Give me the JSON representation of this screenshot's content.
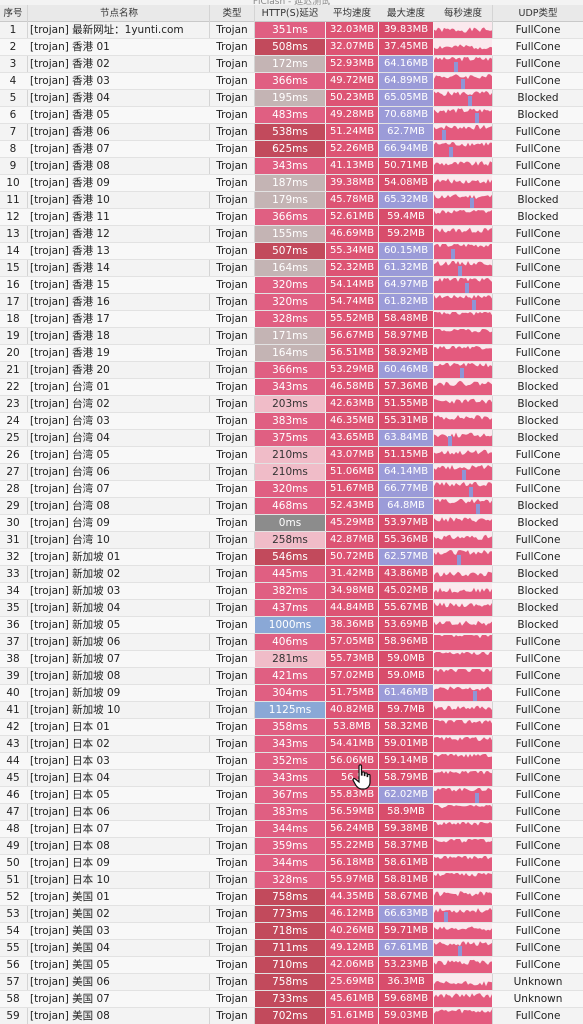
{
  "window_title": "FlClash - 延迟测试",
  "columns": {
    "idx": "序号",
    "name": "节点名称",
    "type": "类型",
    "http": "HTTP(S)延迟",
    "avg": "平均速度",
    "max": "最大速度",
    "per_sec": "每秒速度",
    "udp": "UDP类型"
  },
  "colors": {
    "http_fast": "#c4b4b4",
    "http_mid": "#e05f82",
    "http_slow": "#c24a5c",
    "http_light": "#f0bcc8",
    "http_zero": "#8c8c8c",
    "http_very_slow": "#8aa8d6",
    "avg_bg": "#dd5474",
    "max_bg": "#d84d6c",
    "max_high": "#9b9bd8",
    "spark_fill": "#e45a7e",
    "spark_dip": "#8e95d6"
  },
  "rows": [
    {
      "idx": "1",
      "name": "[trojan] 最新网址：1yunti.com",
      "type": "Trojan",
      "http": "351ms",
      "avg": "32.03MB",
      "max": "39.83MB",
      "udp": "FullCone"
    },
    {
      "idx": "2",
      "name": "[trojan] 香港 01",
      "type": "Trojan",
      "http": "508ms",
      "avg": "32.07MB",
      "max": "37.45MB",
      "udp": "FullCone"
    },
    {
      "idx": "3",
      "name": "[trojan] 香港 02",
      "type": "Trojan",
      "http": "172ms",
      "avg": "52.93MB",
      "max": "64.16MB",
      "udp": "FullCone"
    },
    {
      "idx": "4",
      "name": "[trojan] 香港 03",
      "type": "Trojan",
      "http": "366ms",
      "avg": "49.72MB",
      "max": "64.89MB",
      "udp": "FullCone"
    },
    {
      "idx": "5",
      "name": "[trojan] 香港 04",
      "type": "Trojan",
      "http": "195ms",
      "avg": "50.23MB",
      "max": "65.05MB",
      "udp": "Blocked"
    },
    {
      "idx": "6",
      "name": "[trojan] 香港 05",
      "type": "Trojan",
      "http": "483ms",
      "avg": "49.28MB",
      "max": "70.68MB",
      "udp": "Blocked"
    },
    {
      "idx": "7",
      "name": "[trojan] 香港 06",
      "type": "Trojan",
      "http": "538ms",
      "avg": "51.24MB",
      "max": "62.7MB",
      "udp": "FullCone"
    },
    {
      "idx": "8",
      "name": "[trojan] 香港 07",
      "type": "Trojan",
      "http": "625ms",
      "avg": "52.26MB",
      "max": "66.94MB",
      "udp": "FullCone"
    },
    {
      "idx": "9",
      "name": "[trojan] 香港 08",
      "type": "Trojan",
      "http": "343ms",
      "avg": "41.13MB",
      "max": "50.71MB",
      "udp": "FullCone"
    },
    {
      "idx": "10",
      "name": "[trojan] 香港 09",
      "type": "Trojan",
      "http": "187ms",
      "avg": "39.38MB",
      "max": "54.08MB",
      "udp": "FullCone"
    },
    {
      "idx": "11",
      "name": "[trojan] 香港 10",
      "type": "Trojan",
      "http": "179ms",
      "avg": "45.78MB",
      "max": "65.32MB",
      "udp": "Blocked"
    },
    {
      "idx": "12",
      "name": "[trojan] 香港 11",
      "type": "Trojan",
      "http": "366ms",
      "avg": "52.61MB",
      "max": "59.4MB",
      "udp": "Blocked"
    },
    {
      "idx": "13",
      "name": "[trojan] 香港 12",
      "type": "Trojan",
      "http": "155ms",
      "avg": "46.69MB",
      "max": "59.2MB",
      "udp": "FullCone"
    },
    {
      "idx": "14",
      "name": "[trojan] 香港 13",
      "type": "Trojan",
      "http": "507ms",
      "avg": "55.34MB",
      "max": "60.15MB",
      "udp": "FullCone"
    },
    {
      "idx": "15",
      "name": "[trojan] 香港 14",
      "type": "Trojan",
      "http": "164ms",
      "avg": "52.32MB",
      "max": "61.32MB",
      "udp": "FullCone"
    },
    {
      "idx": "16",
      "name": "[trojan] 香港 15",
      "type": "Trojan",
      "http": "320ms",
      "avg": "54.14MB",
      "max": "64.97MB",
      "udp": "FullCone"
    },
    {
      "idx": "17",
      "name": "[trojan] 香港 16",
      "type": "Trojan",
      "http": "320ms",
      "avg": "54.74MB",
      "max": "61.82MB",
      "udp": "FullCone"
    },
    {
      "idx": "18",
      "name": "[trojan] 香港 17",
      "type": "Trojan",
      "http": "328ms",
      "avg": "55.52MB",
      "max": "58.48MB",
      "udp": "FullCone"
    },
    {
      "idx": "19",
      "name": "[trojan] 香港 18",
      "type": "Trojan",
      "http": "171ms",
      "avg": "56.67MB",
      "max": "58.97MB",
      "udp": "FullCone"
    },
    {
      "idx": "20",
      "name": "[trojan] 香港 19",
      "type": "Trojan",
      "http": "164ms",
      "avg": "56.51MB",
      "max": "58.92MB",
      "udp": "FullCone"
    },
    {
      "idx": "21",
      "name": "[trojan] 香港 20",
      "type": "Trojan",
      "http": "366ms",
      "avg": "53.29MB",
      "max": "60.46MB",
      "udp": "Blocked"
    },
    {
      "idx": "22",
      "name": "[trojan] 台湾 01",
      "type": "Trojan",
      "http": "343ms",
      "avg": "46.58MB",
      "max": "57.36MB",
      "udp": "Blocked"
    },
    {
      "idx": "23",
      "name": "[trojan] 台湾 02",
      "type": "Trojan",
      "http": "203ms",
      "avg": "42.63MB",
      "max": "51.55MB",
      "udp": "Blocked"
    },
    {
      "idx": "24",
      "name": "[trojan] 台湾 03",
      "type": "Trojan",
      "http": "383ms",
      "avg": "46.35MB",
      "max": "55.31MB",
      "udp": "Blocked"
    },
    {
      "idx": "25",
      "name": "[trojan] 台湾 04",
      "type": "Trojan",
      "http": "375ms",
      "avg": "43.65MB",
      "max": "63.84MB",
      "udp": "Blocked"
    },
    {
      "idx": "26",
      "name": "[trojan] 台湾 05",
      "type": "Trojan",
      "http": "210ms",
      "avg": "43.07MB",
      "max": "51.15MB",
      "udp": "FullCone"
    },
    {
      "idx": "27",
      "name": "[trojan] 台湾 06",
      "type": "Trojan",
      "http": "210ms",
      "avg": "51.06MB",
      "max": "64.14MB",
      "udp": "FullCone"
    },
    {
      "idx": "28",
      "name": "[trojan] 台湾 07",
      "type": "Trojan",
      "http": "320ms",
      "avg": "51.67MB",
      "max": "66.77MB",
      "udp": "FullCone"
    },
    {
      "idx": "29",
      "name": "[trojan] 台湾 08",
      "type": "Trojan",
      "http": "468ms",
      "avg": "52.43MB",
      "max": "64.8MB",
      "udp": "Blocked"
    },
    {
      "idx": "30",
      "name": "[trojan] 台湾 09",
      "type": "Trojan",
      "http": "0ms",
      "avg": "45.29MB",
      "max": "53.97MB",
      "udp": "Blocked"
    },
    {
      "idx": "31",
      "name": "[trojan] 台湾 10",
      "type": "Trojan",
      "http": "258ms",
      "avg": "42.87MB",
      "max": "55.36MB",
      "udp": "FullCone"
    },
    {
      "idx": "32",
      "name": "[trojan] 新加坡 01",
      "type": "Trojan",
      "http": "546ms",
      "avg": "50.72MB",
      "max": "62.57MB",
      "udp": "FullCone"
    },
    {
      "idx": "33",
      "name": "[trojan] 新加坡 02",
      "type": "Trojan",
      "http": "445ms",
      "avg": "31.42MB",
      "max": "43.86MB",
      "udp": "Blocked"
    },
    {
      "idx": "34",
      "name": "[trojan] 新加坡 03",
      "type": "Trojan",
      "http": "382ms",
      "avg": "34.98MB",
      "max": "45.02MB",
      "udp": "Blocked"
    },
    {
      "idx": "35",
      "name": "[trojan] 新加坡 04",
      "type": "Trojan",
      "http": "437ms",
      "avg": "44.84MB",
      "max": "55.67MB",
      "udp": "Blocked"
    },
    {
      "idx": "36",
      "name": "[trojan] 新加坡 05",
      "type": "Trojan",
      "http": "1000ms",
      "avg": "38.36MB",
      "max": "53.69MB",
      "udp": "Blocked"
    },
    {
      "idx": "37",
      "name": "[trojan] 新加坡 06",
      "type": "Trojan",
      "http": "406ms",
      "avg": "57.05MB",
      "max": "58.96MB",
      "udp": "FullCone"
    },
    {
      "idx": "38",
      "name": "[trojan] 新加坡 07",
      "type": "Trojan",
      "http": "281ms",
      "avg": "55.73MB",
      "max": "59.0MB",
      "udp": "FullCone"
    },
    {
      "idx": "39",
      "name": "[trojan] 新加坡 08",
      "type": "Trojan",
      "http": "421ms",
      "avg": "57.02MB",
      "max": "59.0MB",
      "udp": "FullCone"
    },
    {
      "idx": "40",
      "name": "[trojan] 新加坡 09",
      "type": "Trojan",
      "http": "304ms",
      "avg": "51.75MB",
      "max": "61.46MB",
      "udp": "FullCone"
    },
    {
      "idx": "41",
      "name": "[trojan] 新加坡 10",
      "type": "Trojan",
      "http": "1125ms",
      "avg": "40.82MB",
      "max": "59.7MB",
      "udp": "FullCone"
    },
    {
      "idx": "42",
      "name": "[trojan] 日本 01",
      "type": "Trojan",
      "http": "358ms",
      "avg": "53.8MB",
      "max": "58.32MB",
      "udp": "FullCone"
    },
    {
      "idx": "43",
      "name": "[trojan] 日本 02",
      "type": "Trojan",
      "http": "343ms",
      "avg": "54.41MB",
      "max": "59.01MB",
      "udp": "FullCone"
    },
    {
      "idx": "44",
      "name": "[trojan] 日本 03",
      "type": "Trojan",
      "http": "352ms",
      "avg": "56.06MB",
      "max": "59.14MB",
      "udp": "FullCone"
    },
    {
      "idx": "45",
      "name": "[trojan] 日本 04",
      "type": "Trojan",
      "http": "343ms",
      "avg": "56.5",
      "max": "58.79MB",
      "udp": "FullCone"
    },
    {
      "idx": "46",
      "name": "[trojan] 日本 05",
      "type": "Trojan",
      "http": "367ms",
      "avg": "55.83MB",
      "max": "62.02MB",
      "udp": "FullCone"
    },
    {
      "idx": "47",
      "name": "[trojan] 日本 06",
      "type": "Trojan",
      "http": "383ms",
      "avg": "56.59MB",
      "max": "58.9MB",
      "udp": "FullCone"
    },
    {
      "idx": "48",
      "name": "[trojan] 日本 07",
      "type": "Trojan",
      "http": "344ms",
      "avg": "56.24MB",
      "max": "59.38MB",
      "udp": "FullCone"
    },
    {
      "idx": "49",
      "name": "[trojan] 日本 08",
      "type": "Trojan",
      "http": "359ms",
      "avg": "55.22MB",
      "max": "58.37MB",
      "udp": "FullCone"
    },
    {
      "idx": "50",
      "name": "[trojan] 日本 09",
      "type": "Trojan",
      "http": "344ms",
      "avg": "56.18MB",
      "max": "58.61MB",
      "udp": "FullCone"
    },
    {
      "idx": "51",
      "name": "[trojan] 日本 10",
      "type": "Trojan",
      "http": "328ms",
      "avg": "55.97MB",
      "max": "58.81MB",
      "udp": "FullCone"
    },
    {
      "idx": "52",
      "name": "[trojan] 美国 01",
      "type": "Trojan",
      "http": "758ms",
      "avg": "44.35MB",
      "max": "58.67MB",
      "udp": "FullCone"
    },
    {
      "idx": "53",
      "name": "[trojan] 美国 02",
      "type": "Trojan",
      "http": "773ms",
      "avg": "46.12MB",
      "max": "66.63MB",
      "udp": "FullCone"
    },
    {
      "idx": "54",
      "name": "[trojan] 美国 03",
      "type": "Trojan",
      "http": "718ms",
      "avg": "40.26MB",
      "max": "59.71MB",
      "udp": "FullCone"
    },
    {
      "idx": "55",
      "name": "[trojan] 美国 04",
      "type": "Trojan",
      "http": "711ms",
      "avg": "49.12MB",
      "max": "67.61MB",
      "udp": "FullCone"
    },
    {
      "idx": "56",
      "name": "[trojan] 美国 05",
      "type": "Trojan",
      "http": "710ms",
      "avg": "42.06MB",
      "max": "53.23MB",
      "udp": "FullCone"
    },
    {
      "idx": "57",
      "name": "[trojan] 美国 06",
      "type": "Trojan",
      "http": "758ms",
      "avg": "25.69MB",
      "max": "36.3MB",
      "udp": "Unknown"
    },
    {
      "idx": "58",
      "name": "[trojan] 美国 07",
      "type": "Trojan",
      "http": "733ms",
      "avg": "45.61MB",
      "max": "59.68MB",
      "udp": "Unknown"
    },
    {
      "idx": "59",
      "name": "[trojan] 美国 08",
      "type": "Trojan",
      "http": "702ms",
      "avg": "51.61MB",
      "max": "59.03MB",
      "udp": "FullCone"
    }
  ]
}
